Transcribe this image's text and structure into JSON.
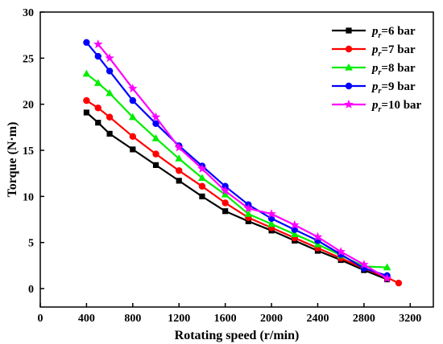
{
  "chart_data": {
    "type": "line",
    "xlabel": "Rotating speed (r/min)",
    "ylabel": "Torque (N·m)",
    "xlim": [
      0,
      3400
    ],
    "ylim": [
      -2,
      30
    ],
    "xticks": [
      0,
      400,
      800,
      1200,
      1600,
      2000,
      2400,
      2800,
      3200
    ],
    "yticks": [
      0,
      5,
      10,
      15,
      20,
      25,
      30
    ],
    "grid": false,
    "legend_placement": "top-right",
    "series": [
      {
        "name": "=6 bar",
        "symbol": "p",
        "subscript": "r",
        "color": "#000000",
        "marker": "square",
        "points": [
          [
            400,
            19.1
          ],
          [
            500,
            18.0
          ],
          [
            600,
            16.8
          ],
          [
            800,
            15.1
          ],
          [
            1000,
            13.4
          ],
          [
            1200,
            11.7
          ],
          [
            1400,
            10.0
          ],
          [
            1600,
            8.4
          ],
          [
            1800,
            7.3
          ],
          [
            2000,
            6.3
          ],
          [
            2200,
            5.2
          ],
          [
            2400,
            4.1
          ],
          [
            2600,
            3.1
          ],
          [
            2800,
            2.0
          ],
          [
            3000,
            1.0
          ]
        ]
      },
      {
        "name": "=7 bar",
        "symbol": "p",
        "subscript": "r",
        "color": "#ff0000",
        "marker": "circle",
        "points": [
          [
            400,
            20.4
          ],
          [
            500,
            19.6
          ],
          [
            600,
            18.6
          ],
          [
            800,
            16.5
          ],
          [
            1000,
            14.6
          ],
          [
            1200,
            12.8
          ],
          [
            1400,
            11.1
          ],
          [
            1600,
            9.3
          ],
          [
            1800,
            7.7
          ],
          [
            2000,
            6.6
          ],
          [
            2200,
            5.5
          ],
          [
            2400,
            4.4
          ],
          [
            2600,
            3.3
          ],
          [
            2800,
            2.2
          ],
          [
            3000,
            1.2
          ],
          [
            3100,
            0.6
          ]
        ]
      },
      {
        "name": "=8 bar",
        "symbol": "p",
        "subscript": "r",
        "color": "#00ee00",
        "marker": "triangle",
        "points": [
          [
            400,
            23.3
          ],
          [
            500,
            22.3
          ],
          [
            600,
            21.2
          ],
          [
            800,
            18.6
          ],
          [
            1000,
            16.3
          ],
          [
            1200,
            14.1
          ],
          [
            1400,
            12.0
          ],
          [
            1600,
            10.2
          ],
          [
            1800,
            8.1
          ],
          [
            2000,
            7.0
          ],
          [
            2200,
            5.9
          ],
          [
            2400,
            4.8
          ],
          [
            2600,
            3.6
          ],
          [
            2800,
            2.4
          ],
          [
            3000,
            2.3
          ]
        ]
      },
      {
        "name": "=9 bar",
        "symbol": "p",
        "subscript": "r",
        "color": "#0000ff",
        "marker": "circle",
        "points": [
          [
            400,
            26.7
          ],
          [
            500,
            25.2
          ],
          [
            600,
            23.6
          ],
          [
            800,
            20.4
          ],
          [
            1000,
            17.9
          ],
          [
            1200,
            15.5
          ],
          [
            1400,
            13.3
          ],
          [
            1600,
            11.1
          ],
          [
            1800,
            9.1
          ],
          [
            2000,
            7.6
          ],
          [
            2200,
            6.4
          ],
          [
            2400,
            5.2
          ],
          [
            2600,
            3.7
          ],
          [
            2800,
            2.2
          ],
          [
            3000,
            1.4
          ]
        ]
      },
      {
        "name": "=10 bar",
        "symbol": "p",
        "subscript": "r",
        "color": "#ff00ff",
        "marker": "star",
        "points": [
          [
            500,
            26.5
          ],
          [
            600,
            25.0
          ],
          [
            800,
            21.7
          ],
          [
            1000,
            18.6
          ],
          [
            1200,
            15.3
          ],
          [
            1400,
            13.0
          ],
          [
            1600,
            10.6
          ],
          [
            1800,
            8.7
          ],
          [
            2000,
            8.1
          ],
          [
            2200,
            6.9
          ],
          [
            2400,
            5.6
          ],
          [
            2600,
            4.0
          ],
          [
            2800,
            2.6
          ],
          [
            3000,
            1.1
          ]
        ]
      }
    ]
  }
}
